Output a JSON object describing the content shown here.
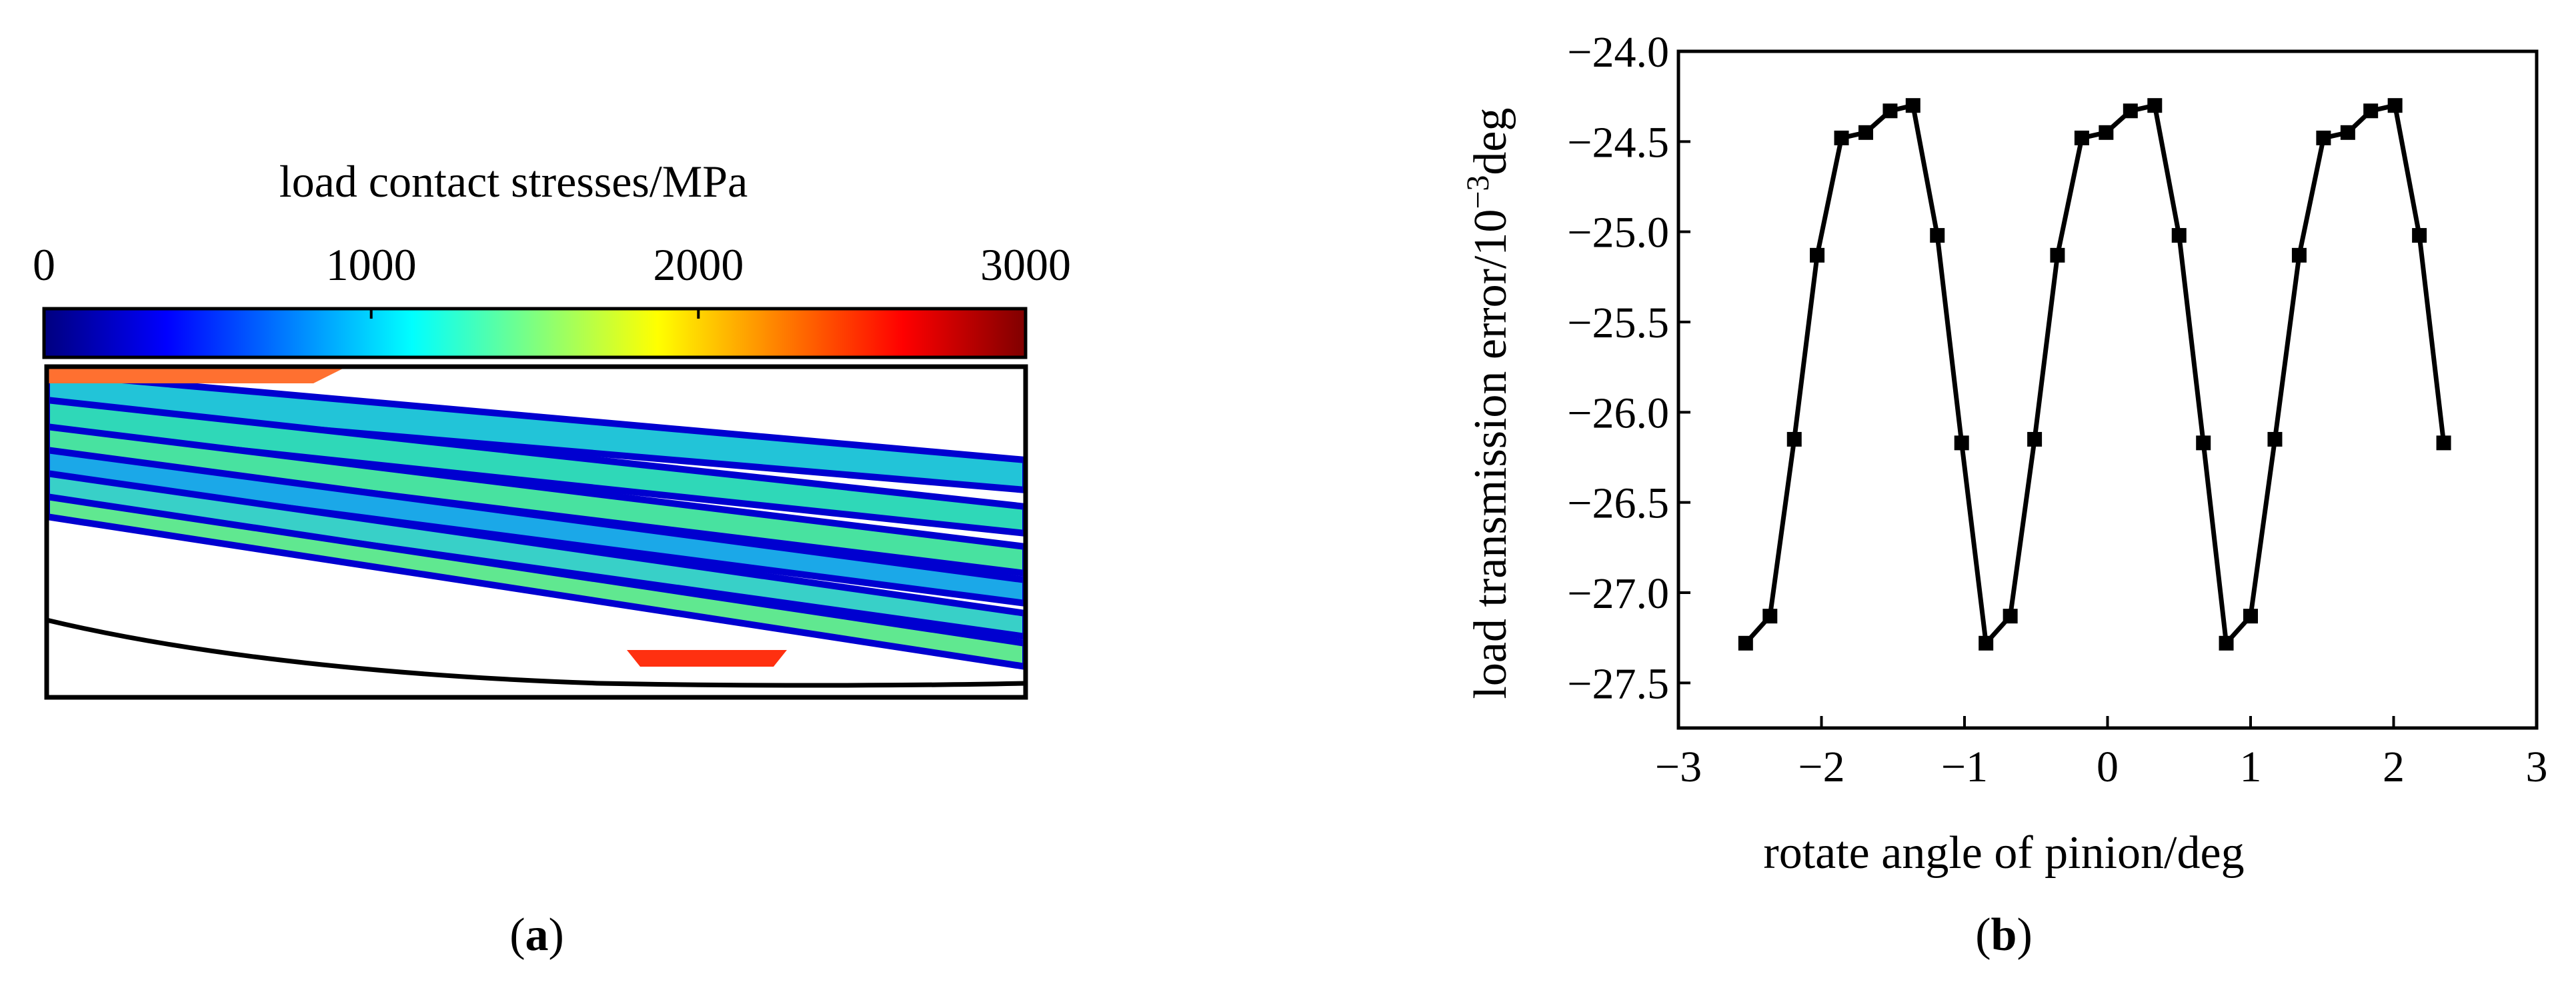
{
  "panel_a": {
    "label_paren_open": "(",
    "label": "a",
    "label_paren_close": ")",
    "colorbar_title": "load contact stresses/MPa",
    "colorbar_ticks": [
      "0",
      "1000",
      "2000",
      "3000"
    ],
    "colorbar_range": [
      0,
      3000
    ],
    "colormap": [
      "#00007f",
      "#0000ff",
      "#007fff",
      "#00ffff",
      "#7fff7f",
      "#ffff00",
      "#ff7f00",
      "#ff0000",
      "#7f0000"
    ]
  },
  "panel_b": {
    "label_paren_open": "(",
    "label": "b",
    "label_paren_close": ")"
  },
  "chart_data": {
    "type": "line",
    "xlabel": "rotate angle of pinion/deg",
    "ylabel_prefix": "load transmission error/10",
    "ylabel_exp": "−3",
    "ylabel_suffix": "deg",
    "xlim": [
      -3,
      3
    ],
    "ylim": [
      -27.75,
      -24.0
    ],
    "x_ticks": [
      -3,
      -2,
      -1,
      0,
      1,
      2,
      3
    ],
    "x_tick_labels": [
      "−3",
      "−2",
      "−1",
      "0",
      "1",
      "2",
      "3"
    ],
    "y_ticks": [
      -24.0,
      -24.5,
      -25.0,
      -25.5,
      -26.0,
      -26.5,
      -27.0,
      -27.5
    ],
    "y_tick_labels": [
      "−24.0",
      "−24.5",
      "−25.0",
      "−25.5",
      "−26.0",
      "−26.5",
      "−27.0",
      "−27.5"
    ],
    "grid": false,
    "marker": "square",
    "series": [
      {
        "x": [
          -2.53,
          -2.36,
          -2.19,
          -2.03,
          -1.86,
          -1.69,
          -1.52,
          -1.36,
          -1.19,
          -1.02,
          -0.85,
          -0.68,
          -0.51,
          -0.35,
          -0.18,
          -0.01,
          0.16,
          0.33,
          0.5,
          0.67,
          0.83,
          1.0,
          1.17,
          1.34,
          1.51,
          1.68,
          1.84,
          2.01,
          2.18,
          2.35
        ],
        "y": [
          -27.28,
          -27.13,
          -26.15,
          -25.13,
          -24.48,
          -24.45,
          -24.33,
          -24.3,
          -25.02,
          -26.17,
          -27.28,
          -27.13,
          -26.15,
          -25.13,
          -24.48,
          -24.45,
          -24.33,
          -24.3,
          -25.02,
          -26.17,
          -27.28,
          -27.13,
          -26.15,
          -25.13,
          -24.48,
          -24.45,
          -24.33,
          -24.3,
          -25.02,
          -26.17
        ]
      }
    ]
  }
}
